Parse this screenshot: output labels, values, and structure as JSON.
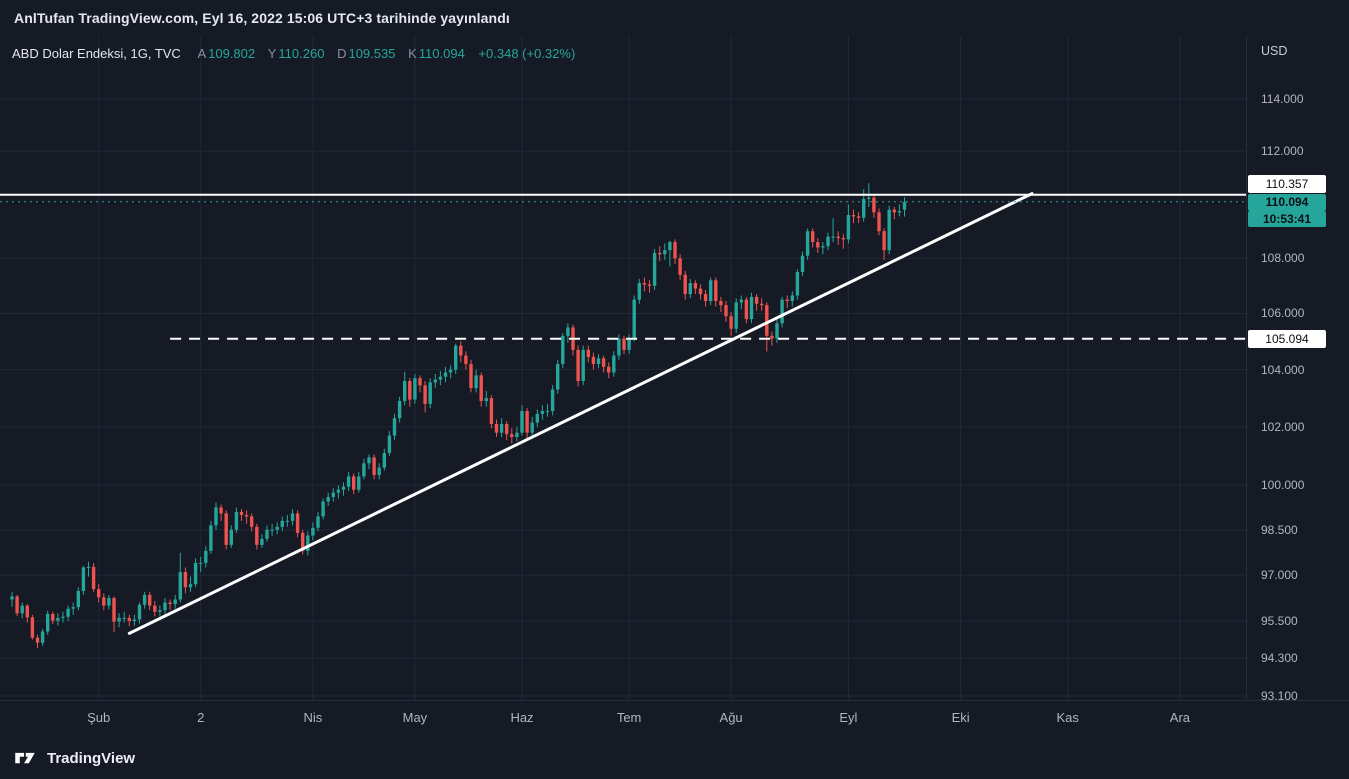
{
  "header": {
    "byline": "AnlTufan TradingView.com, Eyl 16, 2022 15:06 UTC+3 tarihinde yayınlandı"
  },
  "legend": {
    "symbol_title": "ABD Dolar Endeksi, 1G, TVC",
    "ohlc": {
      "open_label": "A",
      "open": "109.802",
      "high_label": "Y",
      "high": "110.260",
      "low_label": "D",
      "low": "109.535",
      "close_label": "K",
      "close": "110.094"
    },
    "change": "+0.348 (+0.32%)"
  },
  "price_scale": {
    "currency": "USD",
    "tick_labels": [
      "114.000",
      "112.000",
      "108.000",
      "106.000",
      "104.000",
      "102.000",
      "100.000",
      "98.500",
      "97.000",
      "95.500",
      "94.300",
      "93.100"
    ],
    "resistance_label": "110.357",
    "last_price_label": "110.094",
    "countdown": "10:53:41",
    "support_label": "105.094"
  },
  "footer": {
    "brand": "TradingView"
  },
  "colors": {
    "background": "#151a25",
    "grid": "#212836",
    "up": "#26a69a",
    "down": "#ef5350",
    "axis_text": "#b2b5be",
    "annotation": "#ffffff"
  },
  "chart_data": {
    "type": "candlestick",
    "title": "ABD Dolar Endeksi, 1G, TVC",
    "interval": "1G",
    "exchange": "TVC",
    "y_axis": {
      "scale": "log",
      "currency": "USD",
      "ticks": [
        114,
        112,
        108,
        106,
        104,
        102,
        100,
        98.5,
        97,
        95.5,
        94.3,
        93.1
      ],
      "range_shown": [
        93.1,
        114
      ]
    },
    "x_axis": {
      "month_ticks": [
        {
          "label": "Şub",
          "index": 17
        },
        {
          "label": "2",
          "index": 37
        },
        {
          "label": "Nis",
          "index": 59
        },
        {
          "label": "May",
          "index": 79
        },
        {
          "label": "Haz",
          "index": 100
        },
        {
          "label": "Tem",
          "index": 121
        },
        {
          "label": "Ağu",
          "index": 141
        },
        {
          "label": "Eyl",
          "index": 164
        },
        {
          "label": "Eki",
          "index": 186
        },
        {
          "label": "Kas",
          "index": 207
        },
        {
          "label": "Ara",
          "index": 229
        }
      ]
    },
    "ohlc_last": {
      "open": 109.802,
      "high": 110.26,
      "low": 109.535,
      "close": 110.094,
      "change": 0.348,
      "change_pct": 0.32
    },
    "annotations": {
      "resistance_line": {
        "price": 110.357,
        "style": "solid"
      },
      "support_line": {
        "price": 105.094,
        "style": "dashed",
        "start_index": 31
      },
      "trend_line": {
        "from": {
          "index": 23,
          "price": 95.1
        },
        "to": {
          "index": 200,
          "price": 110.4
        }
      },
      "last_price_line": {
        "price": 110.094,
        "style": "dotted",
        "countdown": "10:53:41"
      }
    },
    "candles": [
      [
        96.2,
        96.45,
        95.96,
        96.3
      ],
      [
        96.3,
        96.35,
        95.66,
        95.75
      ],
      [
        95.75,
        96.1,
        95.58,
        96.0
      ],
      [
        96.0,
        96.05,
        95.45,
        95.62
      ],
      [
        95.62,
        95.7,
        94.9,
        94.96
      ],
      [
        94.96,
        95.05,
        94.63,
        94.8
      ],
      [
        94.8,
        95.25,
        94.7,
        95.16
      ],
      [
        95.16,
        95.83,
        95.05,
        95.73
      ],
      [
        95.73,
        95.8,
        95.4,
        95.51
      ],
      [
        95.51,
        95.75,
        95.35,
        95.6
      ],
      [
        95.6,
        95.8,
        95.45,
        95.64
      ],
      [
        95.64,
        96.0,
        95.5,
        95.9
      ],
      [
        95.9,
        96.1,
        95.7,
        95.95
      ],
      [
        95.95,
        96.6,
        95.85,
        96.48
      ],
      [
        96.48,
        97.3,
        96.35,
        97.25
      ],
      [
        97.25,
        97.44,
        96.95,
        97.27
      ],
      [
        97.27,
        97.4,
        96.45,
        96.54
      ],
      [
        96.54,
        96.7,
        96.1,
        96.27
      ],
      [
        96.27,
        96.4,
        95.85,
        96.0
      ],
      [
        96.0,
        96.35,
        95.88,
        96.25
      ],
      [
        96.25,
        96.3,
        95.14,
        95.48
      ],
      [
        95.48,
        95.75,
        95.3,
        95.6
      ],
      [
        95.6,
        95.8,
        95.45,
        95.6
      ],
      [
        95.6,
        95.7,
        95.33,
        95.5
      ],
      [
        95.5,
        95.7,
        95.35,
        95.55
      ],
      [
        95.55,
        96.1,
        95.42,
        96.03
      ],
      [
        96.03,
        96.45,
        95.9,
        96.35
      ],
      [
        96.35,
        96.45,
        95.85,
        96.0
      ],
      [
        96.0,
        96.15,
        95.65,
        95.8
      ],
      [
        95.8,
        96.0,
        95.65,
        95.85
      ],
      [
        95.85,
        96.25,
        95.7,
        96.1
      ],
      [
        96.1,
        96.2,
        95.85,
        96.05
      ],
      [
        96.05,
        96.35,
        95.9,
        96.2
      ],
      [
        96.2,
        97.74,
        96.1,
        97.1
      ],
      [
        97.1,
        97.25,
        96.4,
        96.6
      ],
      [
        96.6,
        96.95,
        96.45,
        96.7
      ],
      [
        96.7,
        97.55,
        96.6,
        97.4
      ],
      [
        97.4,
        97.6,
        97.1,
        97.4
      ],
      [
        97.4,
        97.95,
        97.25,
        97.8
      ],
      [
        97.8,
        98.8,
        97.7,
        98.65
      ],
      [
        98.65,
        99.42,
        98.5,
        99.25
      ],
      [
        99.25,
        99.35,
        98.8,
        99.05
      ],
      [
        99.05,
        99.15,
        97.85,
        98.0
      ],
      [
        98.0,
        98.65,
        97.9,
        98.5
      ],
      [
        98.5,
        99.25,
        98.4,
        99.1
      ],
      [
        99.1,
        99.2,
        98.8,
        99.0
      ],
      [
        99.0,
        99.15,
        98.7,
        98.95
      ],
      [
        98.95,
        99.05,
        98.45,
        98.6
      ],
      [
        98.6,
        98.7,
        97.85,
        98.0
      ],
      [
        98.0,
        98.35,
        97.9,
        98.2
      ],
      [
        98.2,
        98.65,
        98.1,
        98.5
      ],
      [
        98.5,
        98.7,
        98.3,
        98.5
      ],
      [
        98.5,
        98.75,
        98.35,
        98.6
      ],
      [
        98.6,
        98.95,
        98.45,
        98.8
      ],
      [
        98.8,
        99.0,
        98.6,
        98.8
      ],
      [
        98.8,
        99.2,
        98.65,
        99.05
      ],
      [
        99.05,
        99.15,
        98.25,
        98.4
      ],
      [
        98.4,
        98.5,
        97.68,
        97.8
      ],
      [
        97.8,
        98.45,
        97.65,
        98.31
      ],
      [
        98.31,
        98.75,
        98.15,
        98.57
      ],
      [
        98.57,
        99.1,
        98.45,
        98.95
      ],
      [
        98.95,
        99.55,
        98.85,
        99.45
      ],
      [
        99.45,
        99.75,
        99.3,
        99.6
      ],
      [
        99.6,
        99.9,
        99.45,
        99.75
      ],
      [
        99.75,
        100.0,
        99.55,
        99.85
      ],
      [
        99.85,
        100.1,
        99.65,
        99.95
      ],
      [
        99.95,
        100.45,
        99.8,
        100.3
      ],
      [
        100.3,
        100.4,
        99.7,
        99.85
      ],
      [
        99.85,
        100.45,
        99.75,
        100.3
      ],
      [
        100.3,
        100.9,
        100.2,
        100.75
      ],
      [
        100.75,
        101.05,
        100.55,
        100.95
      ],
      [
        100.95,
        101.05,
        100.2,
        100.35
      ],
      [
        100.35,
        100.75,
        100.2,
        100.6
      ],
      [
        100.6,
        101.25,
        100.5,
        101.1
      ],
      [
        101.1,
        101.85,
        101.0,
        101.7
      ],
      [
        101.7,
        102.45,
        101.55,
        102.3
      ],
      [
        102.3,
        103.05,
        102.15,
        102.9
      ],
      [
        102.9,
        103.93,
        102.75,
        103.6
      ],
      [
        103.6,
        103.7,
        102.7,
        102.95
      ],
      [
        102.95,
        103.85,
        102.8,
        103.7
      ],
      [
        103.7,
        103.8,
        103.2,
        103.45
      ],
      [
        103.45,
        103.6,
        102.5,
        102.8
      ],
      [
        102.8,
        103.7,
        102.65,
        103.55
      ],
      [
        103.55,
        103.85,
        103.35,
        103.65
      ],
      [
        103.65,
        103.95,
        103.45,
        103.75
      ],
      [
        103.75,
        104.1,
        103.55,
        103.9
      ],
      [
        103.9,
        104.15,
        103.7,
        104.0
      ],
      [
        104.0,
        104.92,
        103.85,
        104.85
      ],
      [
        104.85,
        105.01,
        104.25,
        104.5
      ],
      [
        104.5,
        104.65,
        104.0,
        104.2
      ],
      [
        104.2,
        104.35,
        103.2,
        103.35
      ],
      [
        103.35,
        104.0,
        103.2,
        103.8
      ],
      [
        103.8,
        103.9,
        102.7,
        102.9
      ],
      [
        102.9,
        103.25,
        102.7,
        103.0
      ],
      [
        103.0,
        103.1,
        101.95,
        102.1
      ],
      [
        102.1,
        102.25,
        101.65,
        101.8
      ],
      [
        101.8,
        102.3,
        101.65,
        102.1
      ],
      [
        102.1,
        102.2,
        101.55,
        101.75
      ],
      [
        101.75,
        101.95,
        101.43,
        101.65
      ],
      [
        101.65,
        102.0,
        101.5,
        101.8
      ],
      [
        101.8,
        102.75,
        101.7,
        102.55
      ],
      [
        102.55,
        102.65,
        101.6,
        101.8
      ],
      [
        101.8,
        102.35,
        101.65,
        102.15
      ],
      [
        102.15,
        102.6,
        102.0,
        102.45
      ],
      [
        102.45,
        102.75,
        102.25,
        102.55
      ],
      [
        102.55,
        102.8,
        102.35,
        102.55
      ],
      [
        102.55,
        103.45,
        102.4,
        103.3
      ],
      [
        103.3,
        104.35,
        103.15,
        104.2
      ],
      [
        104.2,
        105.3,
        104.05,
        105.2
      ],
      [
        105.2,
        105.65,
        104.95,
        105.5
      ],
      [
        105.5,
        105.6,
        104.5,
        104.7
      ],
      [
        104.7,
        104.85,
        103.41,
        103.6
      ],
      [
        103.6,
        104.85,
        103.45,
        104.7
      ],
      [
        104.7,
        104.85,
        104.25,
        104.45
      ],
      [
        104.45,
        104.6,
        104.0,
        104.2
      ],
      [
        104.2,
        104.55,
        104.05,
        104.4
      ],
      [
        104.4,
        104.5,
        103.9,
        104.1
      ],
      [
        104.1,
        104.25,
        103.7,
        103.9
      ],
      [
        103.9,
        104.65,
        103.75,
        104.5
      ],
      [
        104.5,
        105.25,
        104.35,
        105.1
      ],
      [
        105.1,
        105.2,
        104.55,
        104.7
      ],
      [
        104.7,
        105.25,
        104.55,
        105.1
      ],
      [
        105.1,
        106.65,
        105.0,
        106.5
      ],
      [
        106.5,
        107.25,
        106.35,
        107.1
      ],
      [
        107.1,
        107.3,
        106.8,
        107.05
      ],
      [
        107.05,
        107.2,
        106.75,
        107.0
      ],
      [
        107.0,
        108.35,
        106.85,
        108.2
      ],
      [
        108.2,
        108.45,
        107.9,
        108.15
      ],
      [
        108.15,
        108.55,
        107.95,
        108.3
      ],
      [
        108.3,
        108.65,
        107.7,
        108.6
      ],
      [
        108.6,
        108.7,
        107.8,
        108.0
      ],
      [
        108.0,
        108.15,
        107.2,
        107.4
      ],
      [
        107.4,
        107.55,
        106.5,
        106.7
      ],
      [
        106.7,
        107.25,
        106.55,
        107.1
      ],
      [
        107.1,
        107.2,
        106.7,
        106.9
      ],
      [
        106.9,
        107.05,
        106.5,
        106.7
      ],
      [
        106.7,
        106.85,
        106.25,
        106.45
      ],
      [
        106.45,
        107.3,
        106.3,
        107.2
      ],
      [
        107.2,
        107.3,
        106.25,
        106.45
      ],
      [
        106.45,
        106.6,
        106.05,
        106.3
      ],
      [
        106.3,
        106.45,
        105.7,
        105.9
      ],
      [
        105.9,
        106.05,
        105.2,
        105.45
      ],
      [
        105.45,
        106.55,
        105.3,
        106.4
      ],
      [
        106.4,
        106.65,
        106.15,
        106.5
      ],
      [
        106.5,
        106.6,
        105.65,
        105.8
      ],
      [
        105.8,
        106.75,
        105.65,
        106.6
      ],
      [
        106.6,
        106.7,
        106.1,
        106.35
      ],
      [
        106.35,
        106.55,
        106.1,
        106.3
      ],
      [
        106.3,
        106.4,
        104.64,
        105.2
      ],
      [
        105.2,
        105.35,
        104.85,
        105.1
      ],
      [
        105.1,
        105.8,
        104.95,
        105.65
      ],
      [
        105.65,
        106.6,
        105.5,
        106.5
      ],
      [
        106.5,
        106.65,
        106.2,
        106.45
      ],
      [
        106.45,
        106.8,
        106.25,
        106.65
      ],
      [
        106.65,
        107.6,
        106.5,
        107.5
      ],
      [
        107.5,
        108.25,
        107.35,
        108.1
      ],
      [
        108.1,
        109.1,
        107.95,
        109.0
      ],
      [
        109.0,
        109.1,
        108.4,
        108.6
      ],
      [
        108.6,
        108.75,
        108.2,
        108.4
      ],
      [
        108.4,
        108.6,
        108.15,
        108.45
      ],
      [
        108.45,
        108.95,
        108.3,
        108.8
      ],
      [
        108.8,
        109.48,
        108.6,
        108.8
      ],
      [
        108.8,
        109.0,
        108.5,
        108.75
      ],
      [
        108.75,
        108.9,
        108.35,
        108.7
      ],
      [
        108.7,
        109.99,
        108.55,
        109.6
      ],
      [
        109.6,
        109.8,
        109.3,
        109.55
      ],
      [
        109.55,
        109.7,
        109.3,
        109.5
      ],
      [
        109.5,
        110.57,
        109.35,
        110.2
      ],
      [
        110.2,
        110.79,
        109.9,
        110.25
      ],
      [
        110.25,
        110.35,
        109.5,
        109.7
      ],
      [
        109.7,
        109.85,
        108.85,
        109.0
      ],
      [
        109.0,
        109.1,
        107.95,
        108.3
      ],
      [
        108.3,
        109.95,
        108.15,
        109.8
      ],
      [
        109.8,
        109.9,
        109.45,
        109.7
      ],
      [
        109.7,
        110.0,
        109.55,
        109.75
      ],
      [
        109.8,
        110.26,
        109.54,
        110.09
      ]
    ]
  }
}
